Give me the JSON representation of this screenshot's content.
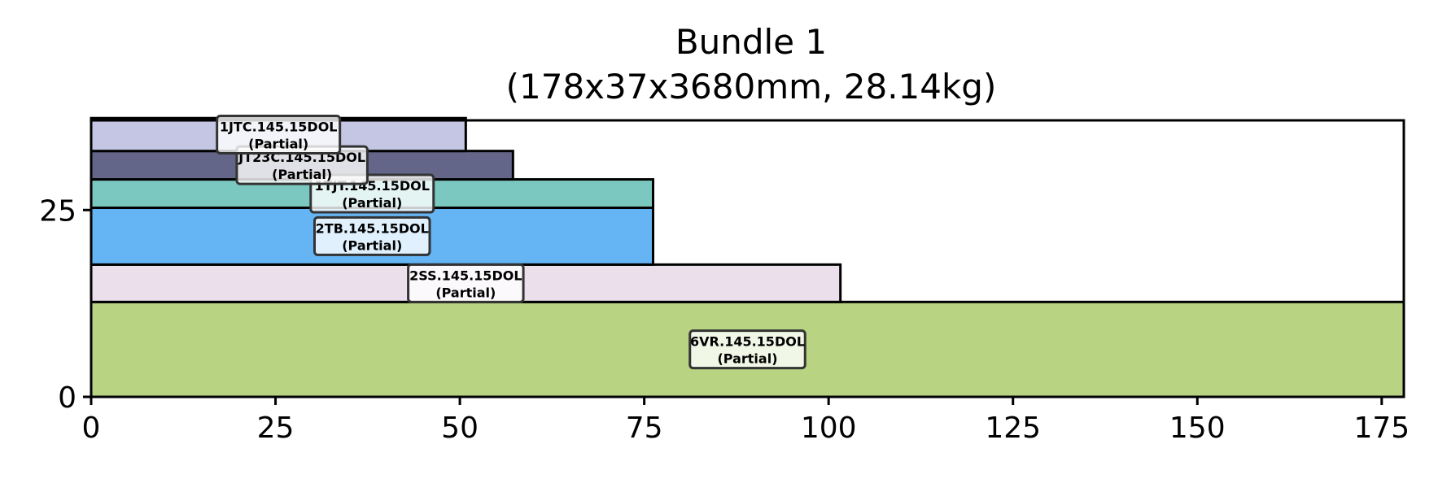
{
  "chart_data": {
    "type": "bar",
    "orientation": "horizontal-stacked-rectangles",
    "title": "Bundle 1",
    "subtitle": "(178x37x3680mm, 28.14kg)",
    "xlabel": "",
    "ylabel": "",
    "xlim": [
      0,
      178
    ],
    "ylim": [
      0,
      37
    ],
    "xticks": [
      0,
      25,
      50,
      75,
      100,
      125,
      150,
      175
    ],
    "yticks": [
      0,
      25
    ],
    "grid": false,
    "items": [
      {
        "label": "6VR.145.15DOL",
        "note": "(Partial)",
        "x0": 0,
        "width": 178,
        "y0": 0,
        "height": 12.7,
        "color": "#b8d483"
      },
      {
        "label": "2SS.145.15DOL",
        "note": "(Partial)",
        "x0": 0,
        "width": 101.6,
        "y0": 12.7,
        "height": 5.0,
        "color": "#ecdfec"
      },
      {
        "label": "2TB.145.15DOL",
        "note": "(Partial)",
        "x0": 0,
        "width": 76.2,
        "y0": 17.7,
        "height": 7.6,
        "color": "#65b4f4"
      },
      {
        "label": "1TJT.145.15DOL",
        "note": "(Partial)",
        "x0": 0,
        "width": 76.2,
        "y0": 25.3,
        "height": 3.8,
        "color": "#7bc8c1"
      },
      {
        "label": "JT23C.145.15DOL",
        "note": "(Partial)",
        "x0": 0,
        "width": 57.2,
        "y0": 29.1,
        "height": 3.8,
        "color": "#636688"
      },
      {
        "label": "1JTC.145.15DOL",
        "note": "(Partial)",
        "x0": 0,
        "width": 50.8,
        "y0": 32.9,
        "height": 4.4,
        "color": "#c4c6e3"
      }
    ]
  }
}
